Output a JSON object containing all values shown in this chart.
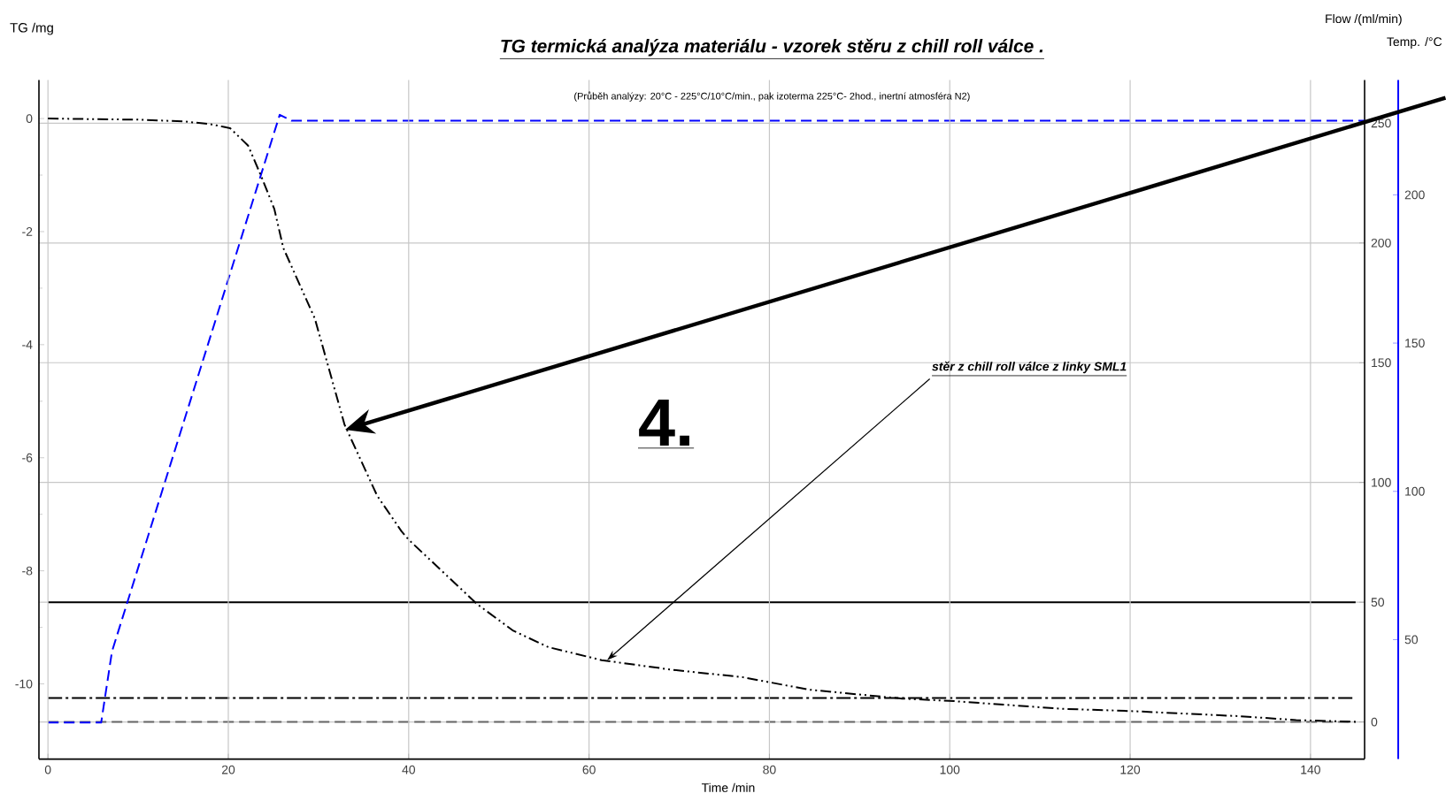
{
  "chart_data": {
    "type": "line",
    "title": "TG termická analýza materiálu - vzorek stěru z chill roll válce  .",
    "subtitle": "(Průběh analýzy: 20°C - 225°C/10°C/min., pak izoterma 225°C- 2hod., inertní atmosféra N2)",
    "xlabel": "Time /min",
    "ylabel": "TG /mg",
    "y2label": "Flow /(ml/min)",
    "y3label": "Temp. /°C",
    "xlim": [
      -1,
      146
    ],
    "xticks": [
      0,
      20,
      40,
      60,
      80,
      100,
      120,
      140
    ],
    "ylim": [
      -11.33,
      0.68
    ],
    "yticks": [
      -10,
      -8,
      -6,
      -4,
      -2,
      0
    ],
    "y2lim": [
      -15.5,
      268
    ],
    "y2ticks": [
      0,
      50,
      100,
      150,
      200,
      250
    ],
    "y3lim": [
      9.7,
      238.7
    ],
    "y3ticks": [
      50,
      100,
      150,
      200
    ],
    "grid": true,
    "marker": "none",
    "series": [
      {
        "color": "#000000",
        "line_style": "dashdotdot",
        "x": [
          0,
          10,
          15,
          18,
          20.2,
          22.2,
          23.7,
          25.1,
          26.1,
          29.6,
          32.9,
          36.5,
          39.2,
          40,
          47.6,
          51.6,
          55.5,
          61.4,
          69.2,
          77,
          84.3,
          94.7,
          100,
          112.4,
          120,
          132,
          138.4,
          145
        ],
        "values": [
          0,
          -0.02,
          -0.05,
          -0.1,
          -0.17,
          -0.48,
          -1.04,
          -1.6,
          -2.29,
          -3.54,
          -5.42,
          -6.67,
          -7.3,
          -7.45,
          -8.59,
          -9.06,
          -9.35,
          -9.58,
          -9.75,
          -9.88,
          -10.1,
          -10.26,
          -10.3,
          -10.44,
          -10.48,
          -10.57,
          -10.64,
          -10.67
        ]
      },
      {
        "color": "#0000ff",
        "line_style": "dashed",
        "axis": "y3",
        "x": [
          0,
          5.9,
          7.1,
          25.7,
          27,
          146
        ],
        "values": [
          22,
          22,
          46,
          227,
          225,
          225
        ]
      },
      {
        "color": "#000000",
        "line_style": "solid",
        "axis": "y2",
        "x": [
          0,
          145
        ],
        "values": [
          50,
          50
        ]
      },
      {
        "color": "#000000",
        "line_style": "dashdot",
        "axis": "y2",
        "x": [
          0,
          145
        ],
        "values": [
          10,
          10
        ]
      },
      {
        "color": "#666666",
        "line_style": "dashed",
        "axis": "y2",
        "x": [
          0,
          145
        ],
        "values": [
          0,
          0
        ]
      }
    ],
    "annotations": [
      "4.",
      {
        "text": "stěr z chill roll válce z linky SML1",
        "x": 62,
        "y": -9.58
      }
    ]
  }
}
